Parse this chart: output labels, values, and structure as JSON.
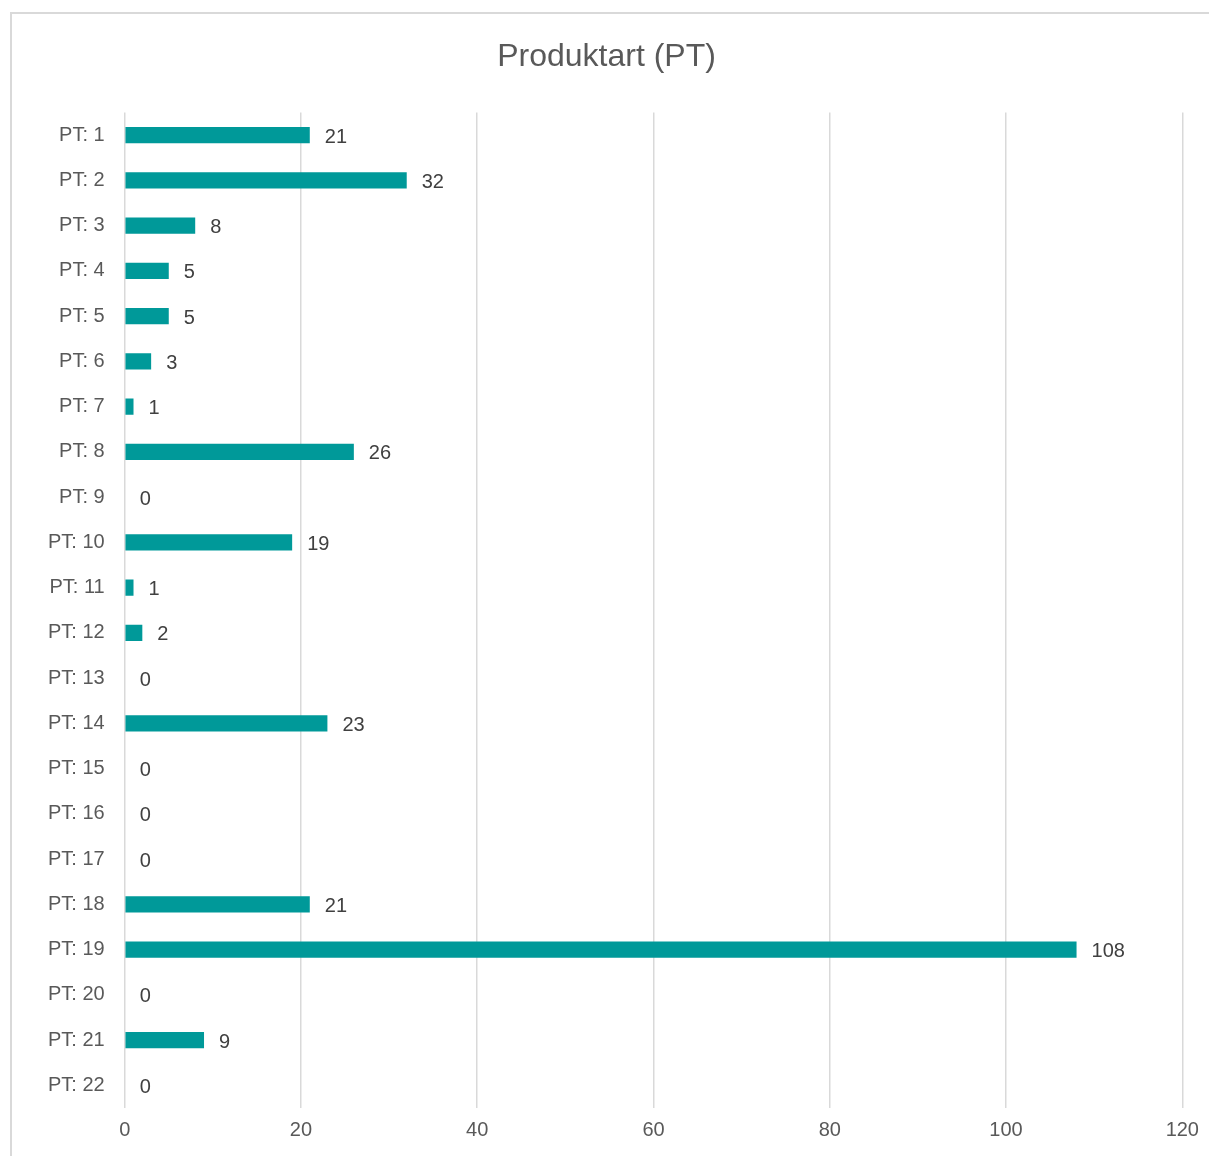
{
  "chart_data": {
    "type": "bar",
    "orientation": "horizontal",
    "title": "Produktart (PT)",
    "categories": [
      "PT: 1",
      "PT: 2",
      "PT: 3",
      "PT: 4",
      "PT: 5",
      "PT: 6",
      "PT: 7",
      "PT: 8",
      "PT: 9",
      "PT: 10",
      "PT: 11",
      "PT: 12",
      "PT: 13",
      "PT: 14",
      "PT: 15",
      "PT: 16",
      "PT: 17",
      "PT: 18",
      "PT: 19",
      "PT: 20",
      "PT: 21",
      "PT: 22"
    ],
    "values": [
      21,
      32,
      8,
      5,
      5,
      3,
      1,
      26,
      0,
      19,
      1,
      2,
      0,
      23,
      0,
      0,
      0,
      21,
      108,
      0,
      9,
      0
    ],
    "color": "#009999",
    "xlim": [
      0,
      120
    ],
    "xticks": [
      0,
      20,
      40,
      60,
      80,
      100,
      120
    ],
    "grid": "x",
    "data_labels": true,
    "legend": false
  }
}
